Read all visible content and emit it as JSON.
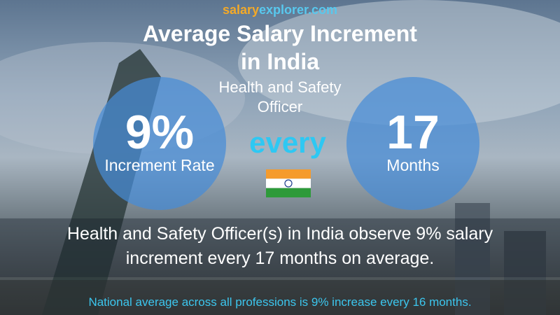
{
  "brand": {
    "salary": "salary",
    "explorer": "explorer",
    "tld": ".com"
  },
  "title": {
    "line1": "Average Salary Increment",
    "line2": "in India"
  },
  "job_title": {
    "line1": "Health and Safety",
    "line2": "Officer"
  },
  "left_circle": {
    "value": "9%",
    "label": "Increment Rate"
  },
  "connector": "every",
  "right_circle": {
    "value": "17",
    "label": "Months"
  },
  "description": {
    "line1": "Health and Safety Officer(s) in India observe 9% salary",
    "line2": "increment every 17 months on average."
  },
  "footer": "National average across all professions is 9% increase every 16 months."
}
